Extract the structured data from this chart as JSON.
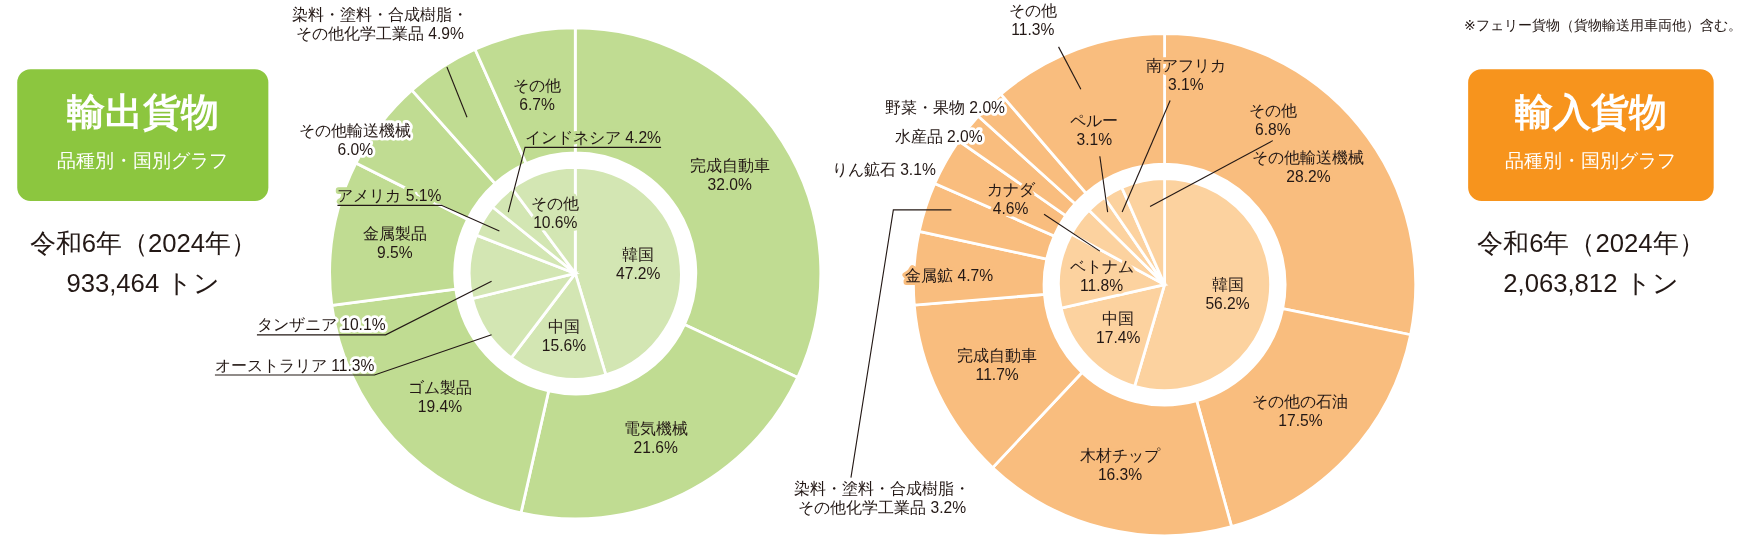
{
  "chart_data": [
    {
      "type": "donut",
      "title": "輸出貨物",
      "subtitle": "品種別・国別グラフ",
      "annotations": [
        "令和6年（2024年）",
        "933,464 トン"
      ],
      "categories": [
        "完成自動車",
        "電気機械",
        "ゴム製品",
        "金属製品",
        "その他輸送機械",
        "染料・塗料・合成樹脂・その他化学工業品",
        "その他"
      ],
      "values": [
        32.0,
        21.6,
        19.4,
        9.5,
        6.0,
        4.9,
        6.7
      ],
      "value_labels": [
        "32.0%",
        "21.6%",
        "19.4%",
        "9.5%",
        "6.0%",
        "4.9%",
        "6.7%"
      ],
      "colors": [
        "#c0dc92",
        "#c0dc92",
        "#c0dc92",
        "#c0dc92",
        "#c0dc92",
        "#c0dc92",
        "#c0dc92"
      ]
    },
    {
      "type": "pie",
      "categories": [
        "韓国",
        "中国",
        "オーストラリア",
        "タンザニア",
        "アメリカ",
        "インドネシア",
        "その他"
      ],
      "values": [
        47.2,
        15.6,
        11.3,
        10.1,
        5.1,
        4.2,
        10.6
      ],
      "value_labels": [
        "47.2%",
        "15.6%",
        "11.3%",
        "10.1%",
        "5.1%",
        "4.2%",
        "10.6%"
      ],
      "colors": [
        "#d3e6b3",
        "#d3e6b3",
        "#d3e6b3",
        "#d3e6b3",
        "#d3e6b3",
        "#d3e6b3",
        "#d3e6b3"
      ]
    },
    {
      "type": "donut",
      "title": "輸入貨物",
      "subtitle": "品種別・国別グラフ",
      "annotations": [
        "令和6年（2024年）",
        "2,063,812 トン",
        "※フェリー貨物（貨物輸送用車両他）含む。"
      ],
      "categories": [
        "その他輸送機械",
        "その他の石油",
        "木材チップ",
        "完成自動車",
        "金属鉱",
        "染料・塗料・合成樹脂・その他化学工業品",
        "りん鉱石",
        "水産品",
        "野菜・果物",
        "その他"
      ],
      "values": [
        28.2,
        17.5,
        16.3,
        11.7,
        4.7,
        3.2,
        3.1,
        2.0,
        2.0,
        11.3
      ],
      "value_labels": [
        "28.2%",
        "17.5%",
        "16.3%",
        "11.7%",
        "4.7%",
        "3.2%",
        "3.1%",
        "2.0%",
        "2.0%",
        "11.3%"
      ],
      "colors": [
        "#f9bd7e",
        "#f9bd7e",
        "#f9bd7e",
        "#f9bd7e",
        "#f9bd7e",
        "#f9bd7e",
        "#f9bd7e",
        "#f9bd7e",
        "#f9bd7e",
        "#f9bd7e"
      ]
    },
    {
      "type": "pie",
      "categories": [
        "韓国",
        "中国",
        "ベトナム",
        "カナダ",
        "ペルー",
        "南アフリカ",
        "その他"
      ],
      "values": [
        56.2,
        17.4,
        11.8,
        4.6,
        3.1,
        3.1,
        6.8
      ],
      "value_labels": [
        "56.2%",
        "17.4%",
        "11.8%",
        "4.6%",
        "3.1%",
        "3.1%",
        "6.8%"
      ],
      "colors": [
        "#fcd29f",
        "#fcd29f",
        "#fcd29f",
        "#fcd29f",
        "#fcd29f",
        "#fcd29f",
        "#fcd29f"
      ]
    }
  ]
}
